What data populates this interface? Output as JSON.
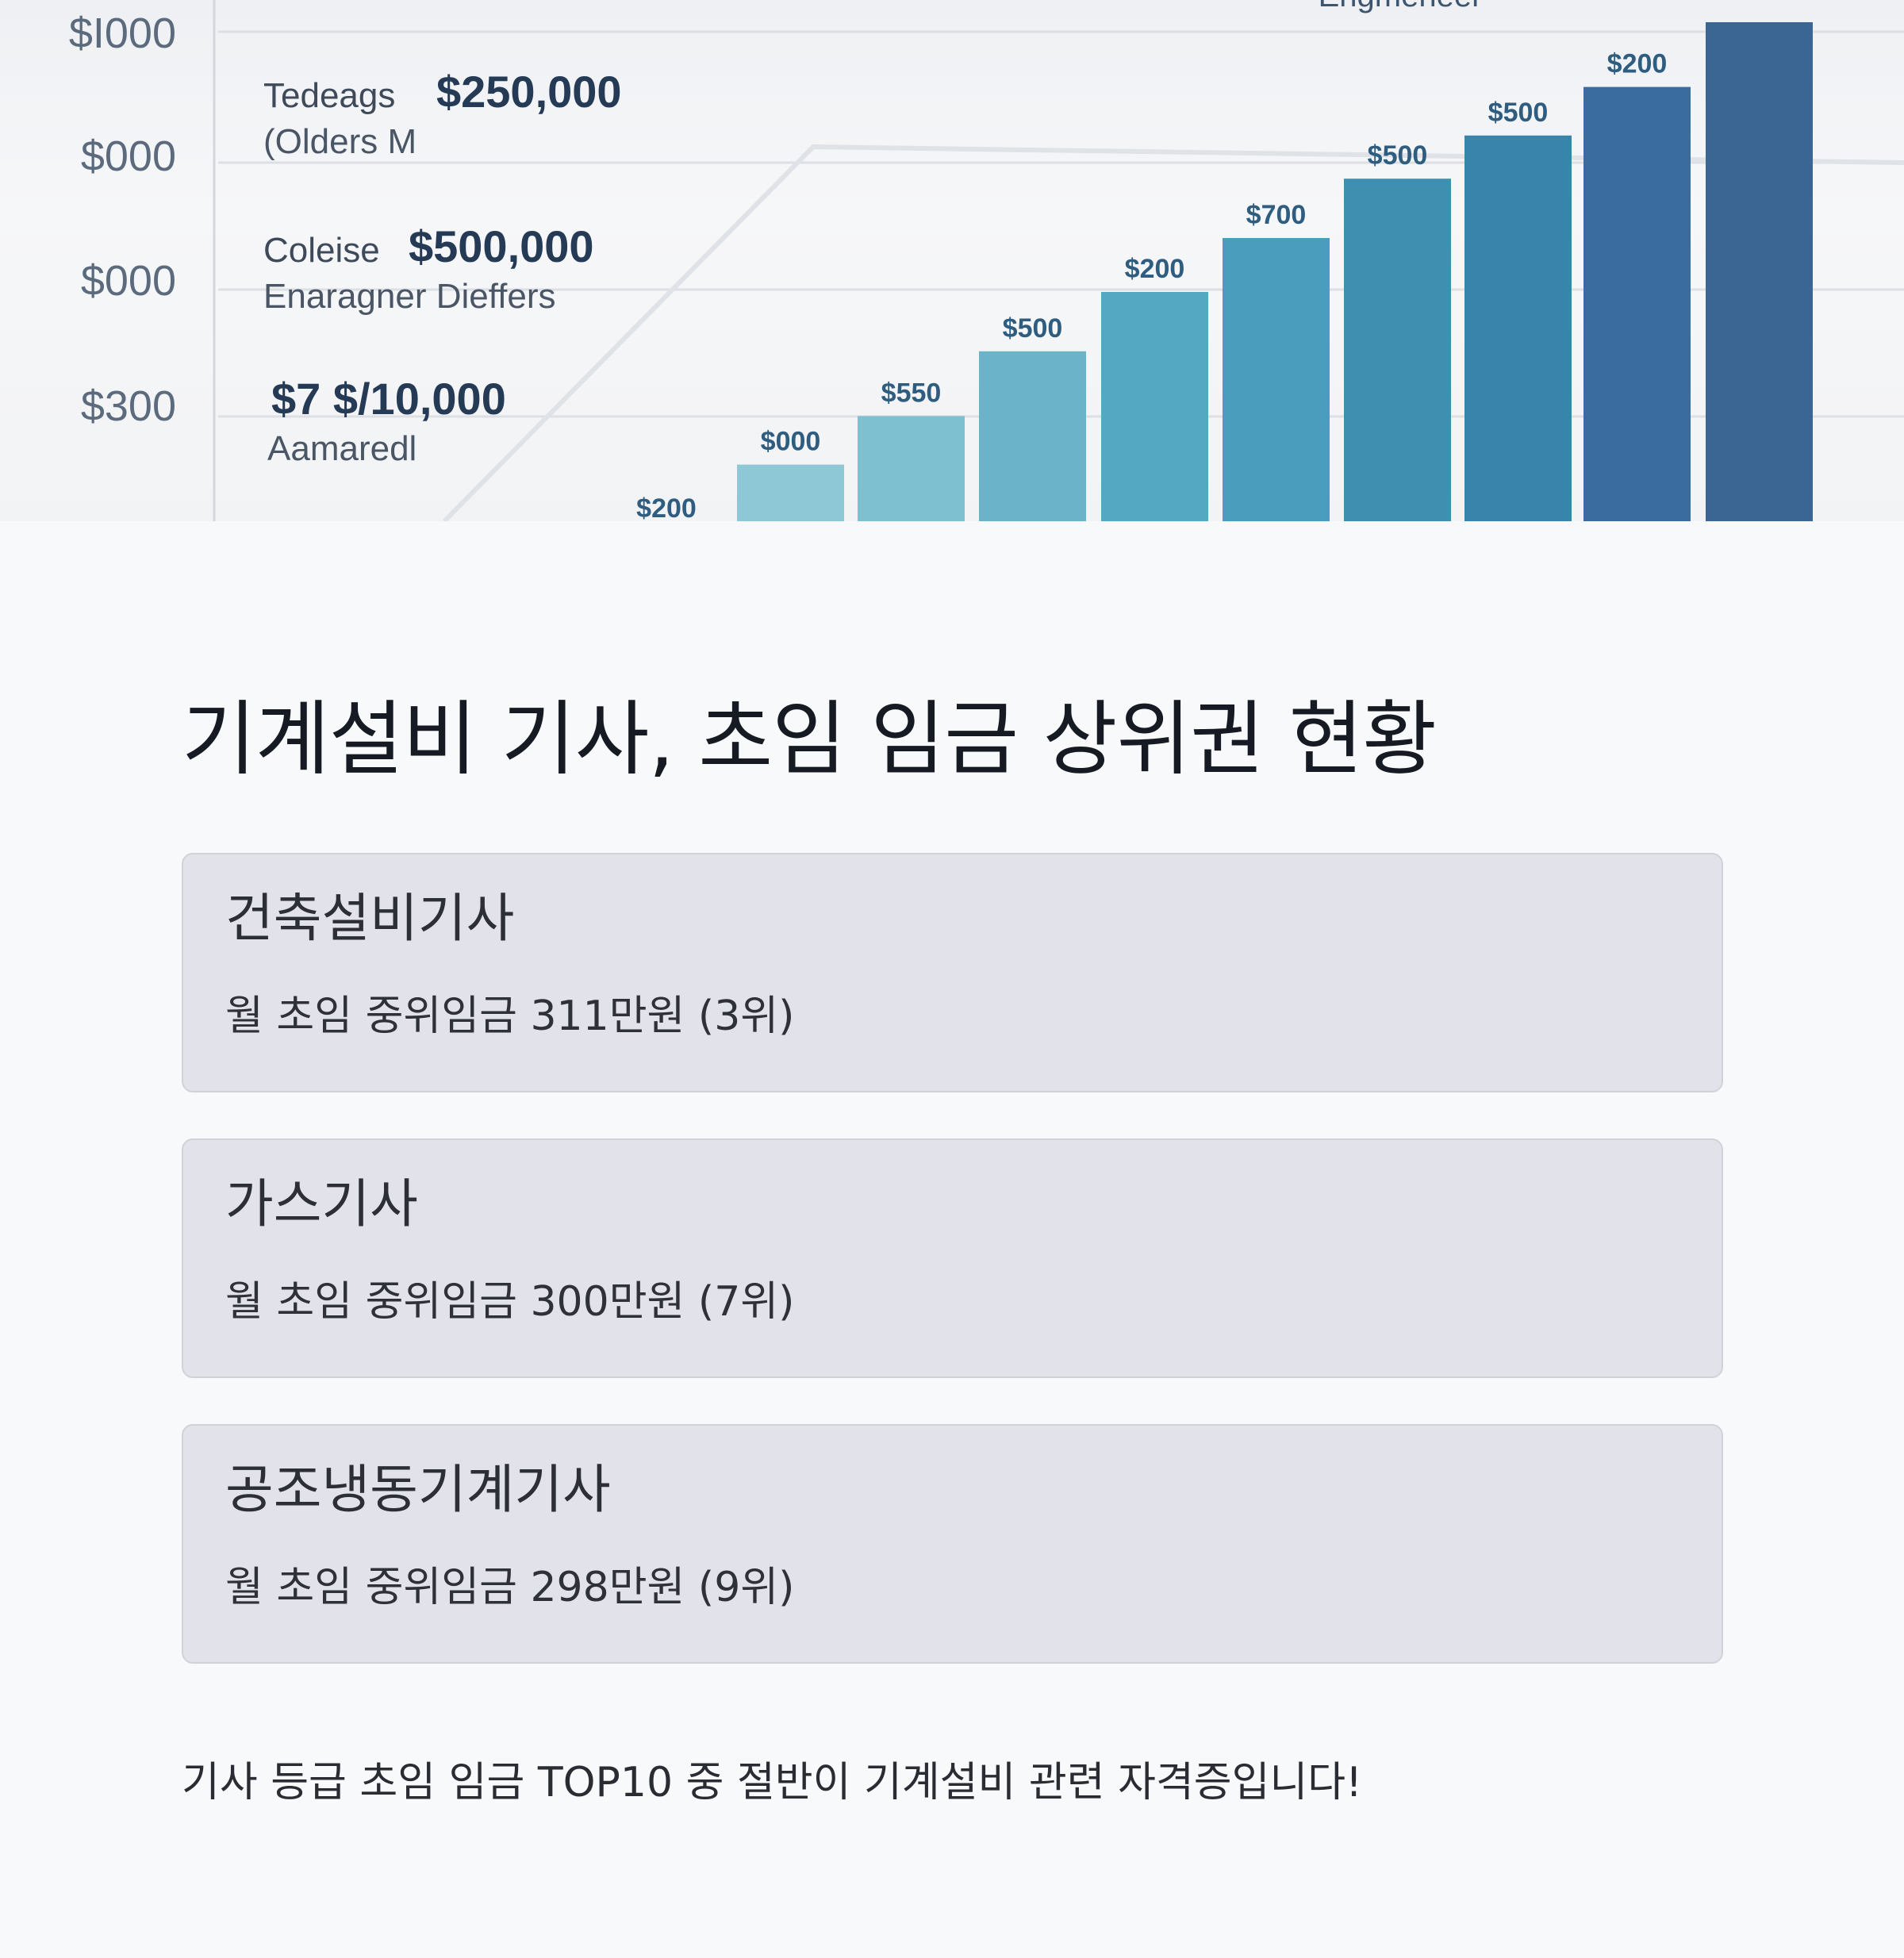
{
  "hero_chart": {
    "y_tick_labels": [
      "$I000",
      "$000",
      "$000",
      "$300"
    ],
    "annotations": [
      {
        "label": "Tedeags",
        "value": "$250,000",
        "sub": "(Olders M"
      },
      {
        "label": "Coleise",
        "value": "$500,000",
        "sub": "Enaragner Dieffers"
      },
      {
        "label": "",
        "value": "$7 $/10,000",
        "sub": "Aamaredl"
      }
    ],
    "series_label": "Engmeneer",
    "bar_labels": [
      "$200",
      "$000",
      "$550",
      "$500",
      "$200",
      "$700",
      "$500",
      "$500",
      "$200",
      ""
    ],
    "bar_levels": [
      0.05,
      0.21,
      0.39,
      0.63,
      0.85,
      1.05,
      1.27,
      1.43,
      1.61,
      1.85
    ],
    "bar_colors": [
      "#9ccfdb",
      "#8ec8d6",
      "#7ebfd0",
      "#6ab3c8",
      "#55a8c2",
      "#4a9dbc",
      "#3f8fb1",
      "#3884aa",
      "#3a6ca0",
      "#3b6592"
    ]
  },
  "page_title": "기계설비 기사, 초임 임금 상위권 현황",
  "cards": [
    {
      "title": "건축설비기사",
      "desc": "월 초임 중위임금 311만원 (3위)"
    },
    {
      "title": "가스기사",
      "desc": "월 초임 중위임금 300만원 (7위)"
    },
    {
      "title": "공조냉동기계기사",
      "desc": "월 초임 중위임금 298만원 (9위)"
    }
  ],
  "footnote": "기사 등급 초임 임금 TOP10 중 절반이 기계설비 관련 자격증입니다!"
}
